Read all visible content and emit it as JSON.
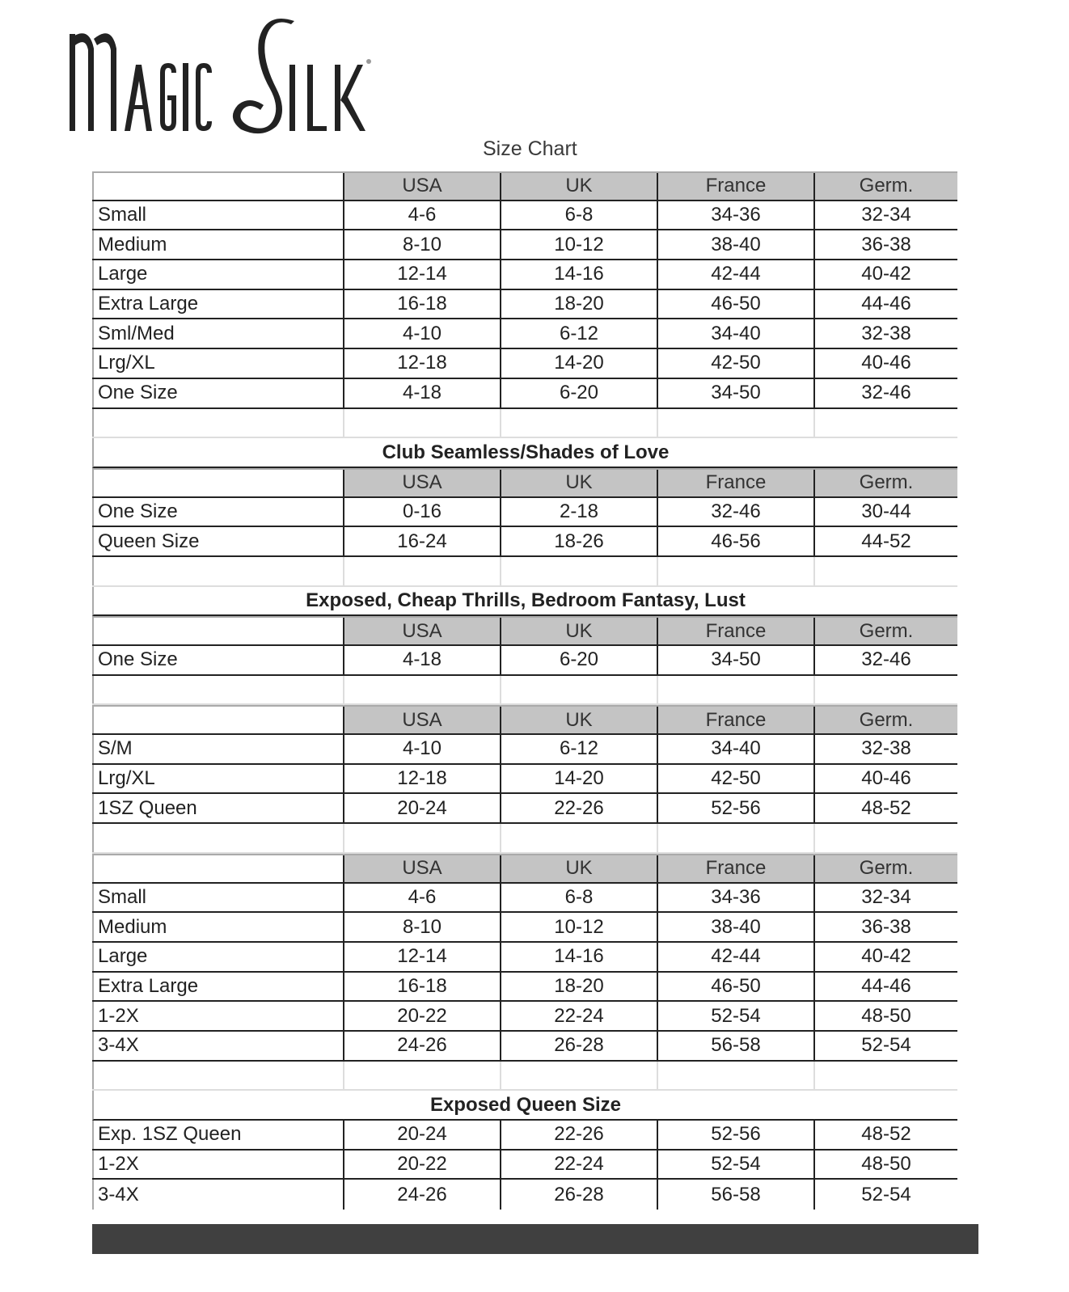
{
  "logo": {
    "text": "MagicSilk"
  },
  "title": "Size Chart",
  "columns": [
    "USA",
    "UK",
    "France",
    "Germ."
  ],
  "sections": [
    {
      "title": "",
      "header": true,
      "rows": [
        [
          "Small",
          "4-6",
          "6-8",
          "34-36",
          "32-34"
        ],
        [
          "Medium",
          "8-10",
          "10-12",
          "38-40",
          "36-38"
        ],
        [
          "Large",
          "12-14",
          "14-16",
          "42-44",
          "40-42"
        ],
        [
          "Extra Large",
          "16-18",
          "18-20",
          "46-50",
          "44-46"
        ],
        [
          "Sml/Med",
          "4-10",
          "6-12",
          "34-40",
          "32-38"
        ],
        [
          "Lrg/XL",
          "12-18",
          "14-20",
          "42-50",
          "40-46"
        ],
        [
          "One Size",
          "4-18",
          "6-20",
          "34-50",
          "32-46"
        ]
      ]
    },
    {
      "title": "Club Seamless/Shades of Love",
      "header": true,
      "rows": [
        [
          "One Size",
          "0-16",
          "2-18",
          "32-46",
          "30-44"
        ],
        [
          "Queen Size",
          "16-24",
          "18-26",
          "46-56",
          "44-52"
        ]
      ]
    },
    {
      "title": "Exposed, Cheap Thrills, Bedroom Fantasy, Lust",
      "header": true,
      "rows": [
        [
          "One Size",
          "4-18",
          "6-20",
          "34-50",
          "32-46"
        ]
      ]
    },
    {
      "title": "",
      "header": true,
      "rows": [
        [
          "S/M",
          "4-10",
          "6-12",
          "34-40",
          "32-38"
        ],
        [
          "Lrg/XL",
          "12-18",
          "14-20",
          "42-50",
          "40-46"
        ],
        [
          "1SZ Queen",
          "20-24",
          "22-26",
          "52-56",
          "48-52"
        ]
      ]
    },
    {
      "title": "",
      "header": true,
      "rows": [
        [
          "Small",
          "4-6",
          "6-8",
          "34-36",
          "32-34"
        ],
        [
          "Medium",
          "8-10",
          "10-12",
          "38-40",
          "36-38"
        ],
        [
          "Large",
          "12-14",
          "14-16",
          "42-44",
          "40-42"
        ],
        [
          "Extra Large",
          "16-18",
          "18-20",
          "46-50",
          "44-46"
        ],
        [
          "1-2X",
          "20-22",
          "22-24",
          "52-54",
          "48-50"
        ],
        [
          "3-4X",
          "24-26",
          "26-28",
          "56-58",
          "52-54"
        ]
      ]
    },
    {
      "title": "Exposed Queen Size",
      "header": false,
      "rows": [
        [
          "Exp. 1SZ Queen",
          "20-24",
          "22-26",
          "52-56",
          "48-52"
        ],
        [
          "1-2X",
          "20-22",
          "22-24",
          "52-54",
          "48-50"
        ],
        [
          "3-4X",
          "24-26",
          "26-28",
          "56-58",
          "52-54"
        ]
      ]
    }
  ]
}
